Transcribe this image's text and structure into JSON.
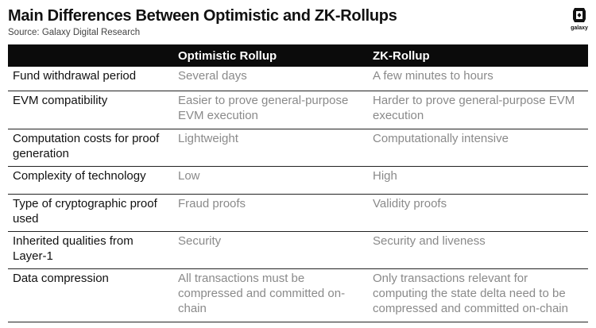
{
  "header": {
    "title": "Main Differences Between Optimistic and ZK-Rollups",
    "source": "Source: Galaxy Digital Research",
    "logo_text": "galaxy"
  },
  "table": {
    "columns": [
      "",
      "Optimistic Rollup",
      "ZK-Rollup"
    ],
    "rows": [
      {
        "feature": "Fund withdrawal period",
        "optimistic": "Several days",
        "zk": "A few minutes to hours"
      },
      {
        "feature": "EVM compatibility",
        "optimistic": "Easier to prove general-purpose EVM execution",
        "zk": "Harder to prove general-purpose EVM execution"
      },
      {
        "feature": "Computation costs for proof generation",
        "optimistic": "Lightweight",
        "zk": "Computationally intensive"
      },
      {
        "feature": "Complexity of technology",
        "optimistic": "Low",
        "zk": "High"
      },
      {
        "feature": "Type of cryptographic proof used",
        "optimistic": "Fraud proofs",
        "zk": "Validity proofs"
      },
      {
        "feature": "Inherited qualities from Layer-1",
        "optimistic": "Security",
        "zk": "Security and liveness"
      },
      {
        "feature": "Data compression",
        "optimistic": "All transactions must be compressed and committed on-chain",
        "zk": "Only transactions relevant for computing the state delta need to be compressed and committed on-chain"
      }
    ]
  },
  "colors": {
    "header_background": "#0b0b0b",
    "header_text": "#ffffff",
    "feature_text": "#111111",
    "value_text": "#8a8a8a",
    "row_divider": "#222222"
  },
  "icons": {
    "logo": "galaxy-logo-icon"
  }
}
